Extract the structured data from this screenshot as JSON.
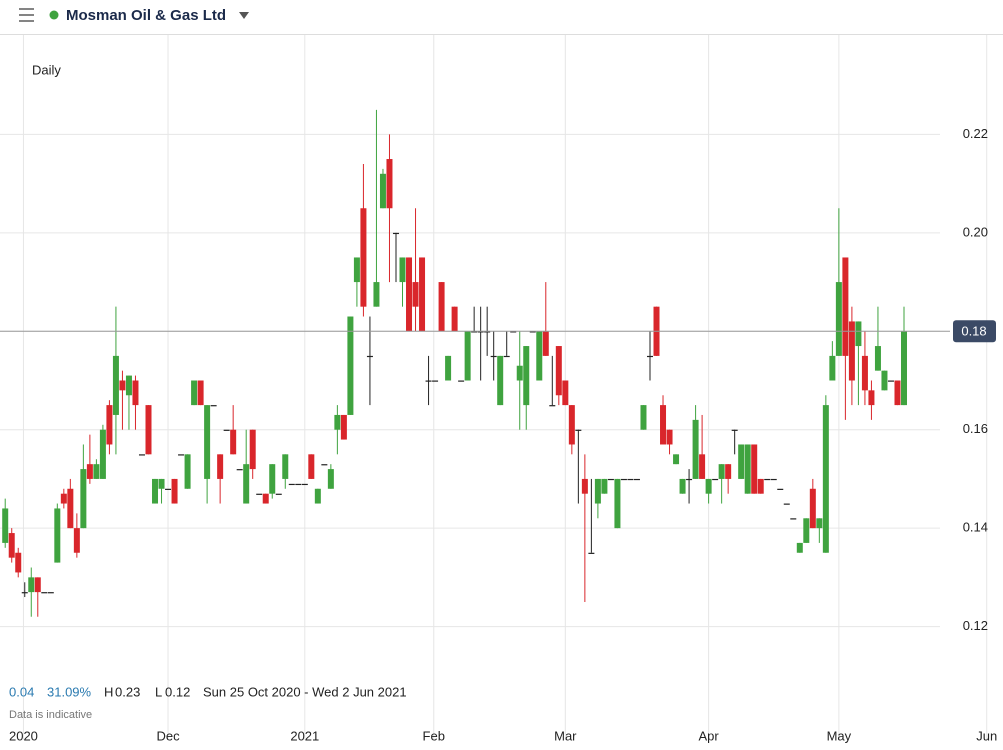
{
  "header": {
    "title": "Mosman Oil & Gas Ltd"
  },
  "chart_data": {
    "type": "candlestick",
    "interval": "Daily",
    "up_color": "#3fa33f",
    "down_color": "#d9262b",
    "ylim": [
      0.1,
      0.24
    ],
    "yticks": [
      0.12,
      0.14,
      0.16,
      0.18,
      {
        "value": 0.2,
        "label": "0.20"
      },
      0.22
    ],
    "xlim": [
      -0.8,
      153.2
    ],
    "xticks": [
      {
        "value": 2.8,
        "label": "2020"
      },
      {
        "value": 25,
        "label": "Dec"
      },
      {
        "value": 46,
        "label": "2021"
      },
      {
        "value": 65.8,
        "label": "Feb"
      },
      {
        "value": 86,
        "label": "Mar"
      },
      {
        "value": 108,
        "label": "Apr"
      },
      {
        "value": 128,
        "label": "May"
      },
      {
        "value": 150.7,
        "label": "Jun"
      }
    ],
    "grid": true,
    "last": 0.18,
    "candles": [
      [
        0.137,
        0.146,
        0.136,
        0.144
      ],
      [
        0.139,
        0.14,
        0.133,
        0.134
      ],
      [
        0.135,
        0.136,
        0.13,
        0.131
      ],
      [
        0.127,
        0.129,
        0.126,
        0.127
      ],
      [
        0.127,
        0.132,
        0.122,
        0.13
      ],
      [
        0.13,
        0.13,
        0.122,
        0.127
      ],
      [
        0.127,
        0.127,
        0.127,
        0.127
      ],
      [
        0.127,
        0.127,
        0.127,
        0.127
      ],
      [
        0.133,
        0.145,
        0.133,
        0.144
      ],
      [
        0.147,
        0.148,
        0.144,
        0.145
      ],
      [
        0.148,
        0.15,
        0.14,
        0.14
      ],
      [
        0.14,
        0.143,
        0.134,
        0.135
      ],
      [
        0.14,
        0.157,
        0.14,
        0.152
      ],
      [
        0.153,
        0.159,
        0.149,
        0.15
      ],
      [
        0.15,
        0.154,
        0.15,
        0.153
      ],
      [
        0.15,
        0.161,
        0.15,
        0.16
      ],
      [
        0.165,
        0.166,
        0.155,
        0.157
      ],
      [
        0.163,
        0.185,
        0.155,
        0.175
      ],
      [
        0.17,
        0.172,
        0.16,
        0.168
      ],
      [
        0.167,
        0.171,
        0.16,
        0.171
      ],
      [
        0.17,
        0.171,
        0.16,
        0.165
      ],
      [
        0.155,
        0.155,
        0.155,
        0.155
      ],
      [
        0.165,
        0.165,
        0.155,
        0.155
      ],
      [
        0.145,
        0.15,
        0.145,
        0.15
      ],
      [
        0.148,
        0.15,
        0.145,
        0.15
      ],
      [
        0.148,
        0.148,
        0.148,
        0.148
      ],
      [
        0.15,
        0.15,
        0.145,
        0.145
      ],
      [
        0.155,
        0.155,
        0.155,
        0.155
      ],
      [
        0.148,
        0.155,
        0.148,
        0.155
      ],
      [
        0.165,
        0.17,
        0.165,
        0.17
      ],
      [
        0.17,
        0.17,
        0.165,
        0.165
      ],
      [
        0.15,
        0.165,
        0.145,
        0.165
      ],
      [
        0.165,
        0.165,
        0.165,
        0.165
      ],
      [
        0.155,
        0.155,
        0.145,
        0.15
      ],
      [
        0.16,
        0.16,
        0.16,
        0.16
      ],
      [
        0.16,
        0.165,
        0.155,
        0.155
      ],
      [
        0.152,
        0.152,
        0.152,
        0.152
      ],
      [
        0.145,
        0.16,
        0.145,
        0.153
      ],
      [
        0.16,
        0.16,
        0.15,
        0.152
      ],
      [
        0.147,
        0.147,
        0.147,
        0.147
      ],
      [
        0.147,
        0.147,
        0.145,
        0.145
      ],
      [
        0.147,
        0.153,
        0.146,
        0.153
      ],
      [
        0.147,
        0.147,
        0.147,
        0.147
      ],
      [
        0.15,
        0.155,
        0.148,
        0.155
      ],
      [
        0.149,
        0.149,
        0.149,
        0.149
      ],
      [
        0.149,
        0.149,
        0.149,
        0.149
      ],
      [
        0.149,
        0.149,
        0.149,
        0.149
      ],
      [
        0.155,
        0.155,
        0.15,
        0.15
      ],
      [
        0.145,
        0.148,
        0.145,
        0.148
      ],
      [
        0.153,
        0.153,
        0.153,
        0.153
      ],
      [
        0.148,
        0.153,
        0.148,
        0.152
      ],
      [
        0.16,
        0.165,
        0.155,
        0.163
      ],
      [
        0.163,
        0.163,
        0.158,
        0.158
      ],
      [
        0.163,
        0.183,
        0.163,
        0.183
      ],
      [
        0.19,
        0.195,
        0.185,
        0.195
      ],
      [
        0.205,
        0.214,
        0.183,
        0.185
      ],
      [
        0.175,
        0.183,
        0.165,
        0.175
      ],
      [
        0.185,
        0.225,
        0.185,
        0.19
      ],
      [
        0.205,
        0.213,
        0.205,
        0.212
      ],
      [
        0.215,
        0.22,
        0.19,
        0.205
      ],
      [
        0.2,
        0.2,
        0.19,
        0.2
      ],
      [
        0.19,
        0.195,
        0.185,
        0.195
      ],
      [
        0.195,
        0.195,
        0.18,
        0.18
      ],
      [
        0.19,
        0.205,
        0.18,
        0.185
      ],
      [
        0.195,
        0.195,
        0.18,
        0.18
      ],
      [
        0.17,
        0.175,
        0.165,
        0.17
      ],
      [
        0.17,
        0.17,
        0.17,
        0.17
      ],
      [
        0.19,
        0.19,
        0.18,
        0.18
      ],
      [
        0.17,
        0.175,
        0.17,
        0.175
      ],
      [
        0.185,
        0.185,
        0.18,
        0.18
      ],
      [
        0.17,
        0.17,
        0.17,
        0.17
      ],
      [
        0.17,
        0.18,
        0.17,
        0.18
      ],
      [
        0.18,
        0.185,
        0.18,
        0.18
      ],
      [
        0.18,
        0.185,
        0.17,
        0.18
      ],
      [
        0.18,
        0.185,
        0.175,
        0.18
      ],
      [
        0.175,
        0.18,
        0.17,
        0.175
      ],
      [
        0.165,
        0.175,
        0.165,
        0.175
      ],
      [
        0.175,
        0.18,
        0.175,
        0.175
      ],
      [
        0.18,
        0.18,
        0.18,
        0.18
      ],
      [
        0.17,
        0.18,
        0.16,
        0.173
      ],
      [
        0.165,
        0.177,
        0.16,
        0.177
      ],
      [
        0.18,
        0.18,
        0.18,
        0.18
      ],
      [
        0.17,
        0.18,
        0.17,
        0.18
      ],
      [
        0.18,
        0.19,
        0.175,
        0.175
      ],
      [
        0.165,
        0.175,
        0.165,
        0.165
      ],
      [
        0.177,
        0.177,
        0.165,
        0.167
      ],
      [
        0.17,
        0.17,
        0.165,
        0.165
      ],
      [
        0.165,
        0.165,
        0.155,
        0.157
      ],
      [
        0.16,
        0.16,
        0.145,
        0.16
      ],
      [
        0.15,
        0.155,
        0.125,
        0.147
      ],
      [
        0.135,
        0.15,
        0.135,
        0.135
      ],
      [
        0.145,
        0.15,
        0.142,
        0.15
      ],
      [
        0.147,
        0.15,
        0.147,
        0.15
      ],
      [
        0.15,
        0.15,
        0.15,
        0.15
      ],
      [
        0.14,
        0.15,
        0.14,
        0.15
      ],
      [
        0.15,
        0.15,
        0.15,
        0.15
      ],
      [
        0.15,
        0.15,
        0.15,
        0.15
      ],
      [
        0.15,
        0.15,
        0.15,
        0.15
      ],
      [
        0.16,
        0.165,
        0.16,
        0.165
      ],
      [
        0.175,
        0.18,
        0.17,
        0.175
      ],
      [
        0.185,
        0.185,
        0.175,
        0.175
      ],
      [
        0.165,
        0.167,
        0.157,
        0.157
      ],
      [
        0.16,
        0.16,
        0.155,
        0.157
      ],
      [
        0.153,
        0.155,
        0.153,
        0.155
      ],
      [
        0.147,
        0.15,
        0.147,
        0.15
      ],
      [
        0.15,
        0.152,
        0.145,
        0.15
      ],
      [
        0.15,
        0.165,
        0.15,
        0.162
      ],
      [
        0.155,
        0.163,
        0.15,
        0.15
      ],
      [
        0.147,
        0.15,
        0.145,
        0.15
      ],
      [
        0.15,
        0.15,
        0.15,
        0.15
      ],
      [
        0.15,
        0.153,
        0.145,
        0.153
      ],
      [
        0.153,
        0.153,
        0.147,
        0.15
      ],
      [
        0.16,
        0.16,
        0.155,
        0.16
      ],
      [
        0.15,
        0.157,
        0.15,
        0.157
      ],
      [
        0.147,
        0.157,
        0.147,
        0.157
      ],
      [
        0.157,
        0.157,
        0.147,
        0.147
      ],
      [
        0.15,
        0.15,
        0.147,
        0.147
      ],
      [
        0.15,
        0.15,
        0.15,
        0.15
      ],
      [
        0.15,
        0.15,
        0.15,
        0.15
      ],
      [
        0.148,
        0.148,
        0.148,
        0.148
      ],
      [
        0.145,
        0.145,
        0.145,
        0.145
      ],
      [
        0.142,
        0.142,
        0.142,
        0.142
      ],
      [
        0.135,
        0.137,
        0.135,
        0.137
      ],
      [
        0.137,
        0.142,
        0.137,
        0.142
      ],
      [
        0.148,
        0.15,
        0.14,
        0.14
      ],
      [
        0.14,
        0.142,
        0.137,
        0.142
      ],
      [
        0.135,
        0.167,
        0.135,
        0.165
      ],
      [
        0.17,
        0.178,
        0.17,
        0.175
      ],
      [
        0.175,
        0.205,
        0.175,
        0.19
      ],
      [
        0.195,
        0.195,
        0.162,
        0.175
      ],
      [
        0.182,
        0.185,
        0.165,
        0.17
      ],
      [
        0.177,
        0.182,
        0.165,
        0.182
      ],
      [
        0.175,
        0.18,
        0.165,
        0.168
      ],
      [
        0.168,
        0.17,
        0.162,
        0.165
      ],
      [
        0.172,
        0.185,
        0.172,
        0.177
      ],
      [
        0.168,
        0.172,
        0.168,
        0.172
      ],
      [
        0.17,
        0.17,
        0.17,
        0.17
      ],
      [
        0.17,
        0.17,
        0.165,
        0.165
      ],
      [
        0.165,
        0.185,
        0.165,
        0.18
      ]
    ]
  },
  "stats": {
    "change": 0.04,
    "change_pct": "31.09%",
    "high_label": "H",
    "high": 0.23,
    "low_label": "L",
    "low": 0.12,
    "range": "Sun 25 Oct 2020 - Wed 2 Jun 2021",
    "note": "Data is indicative"
  }
}
